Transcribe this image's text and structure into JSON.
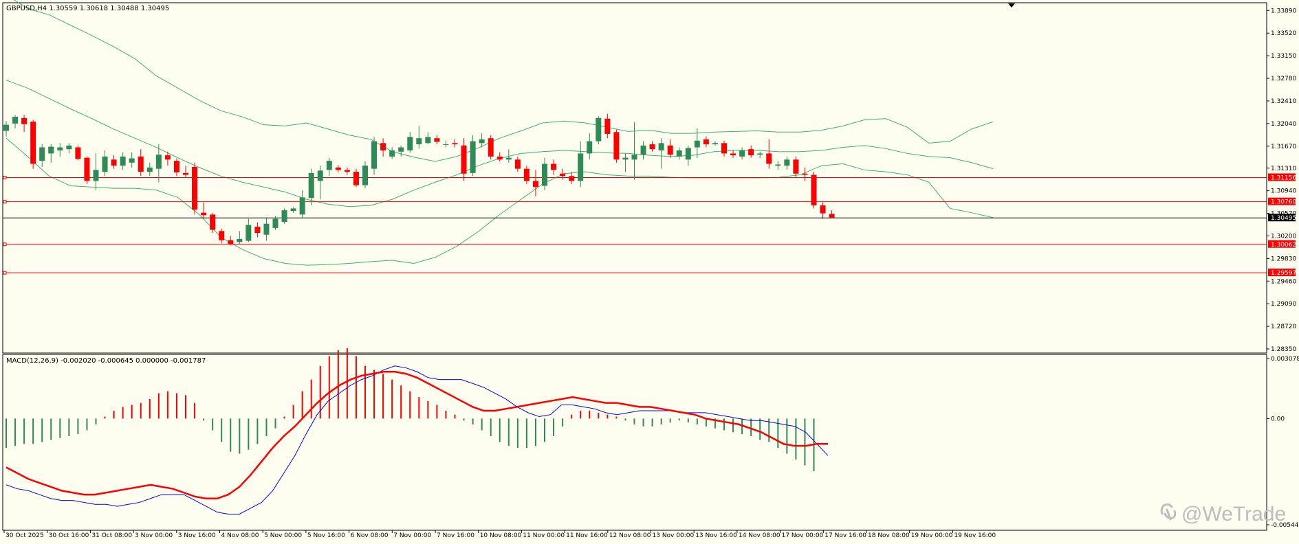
{
  "header": {
    "symbol_line": "GBPUSD,H4  1.30559 1.30618 1.30488 1.30495",
    "macd_line": "MACD(12,26,9) -0.002020 -0.000645 0.000000 -0.001787"
  },
  "watermark": {
    "text": "@WeTrade",
    "icon": "wetrade-logo-icon"
  },
  "colors": {
    "background": "#fdfdf0",
    "bull": "#2e8b57",
    "bear": "#ff0000",
    "band": "#3cb371",
    "level": "#ff0000",
    "current": "#000000",
    "macd_main": "#0000ff",
    "macd_signal": "#ff0000"
  },
  "chart_data": [
    {
      "type": "candlestick",
      "title": "GBPUSD,H4",
      "ohlc_readout": {
        "open": 1.30559,
        "high": 1.30618,
        "low": 1.30488,
        "close": 1.30495
      },
      "ylim": [
        1.2835,
        1.3395
      ],
      "y_ticks": [
        "1.33890",
        "1.33520",
        "1.33150",
        "1.32780",
        "1.32410",
        "1.32040",
        "1.31670",
        "1.31310",
        "1.30940",
        "1.30570",
        "1.30200",
        "1.29830",
        "1.29460",
        "1.29090",
        "1.28720",
        "1.28350"
      ],
      "x_ticks": [
        "30 Oct 2025",
        "30 Oct 16:00",
        "31 Oct 08:00",
        "3 Nov 00:00",
        "3 Nov 16:00",
        "4 Nov 08:00",
        "5 Nov 00:00",
        "5 Nov 16:00",
        "6 Nov 08:00",
        "7 Nov 00:00",
        "7 Nov 16:00",
        "10 Nov 08:00",
        "11 Nov 00:00",
        "11 Nov 16:00",
        "12 Nov 08:00",
        "13 Nov 00:00",
        "13 Nov 16:00",
        "14 Nov 08:00",
        "17 Nov 00:00",
        "17 Nov 16:00",
        "18 Nov 08:00",
        "19 Nov 00:00",
        "19 Nov 16:00"
      ],
      "candles": [
        [
          1.3192,
          1.3208,
          1.3183,
          1.3202
        ],
        [
          1.3204,
          1.3218,
          1.3196,
          1.3215
        ],
        [
          1.3213,
          1.3218,
          1.319,
          1.3203
        ],
        [
          1.3207,
          1.321,
          1.313,
          1.3138
        ],
        [
          1.3143,
          1.317,
          1.3133,
          1.3165
        ],
        [
          1.3155,
          1.317,
          1.314,
          1.3166
        ],
        [
          1.316,
          1.3172,
          1.315,
          1.3165
        ],
        [
          1.3162,
          1.3172,
          1.3155,
          1.3168
        ],
        [
          1.3165,
          1.3168,
          1.3144,
          1.3146
        ],
        [
          1.3148,
          1.315,
          1.3105,
          1.311
        ],
        [
          1.311,
          1.3155,
          1.3095,
          1.3128
        ],
        [
          1.3125,
          1.316,
          1.3118,
          1.315
        ],
        [
          1.3145,
          1.3152,
          1.313,
          1.3135
        ],
        [
          1.3135,
          1.3157,
          1.3128,
          1.315
        ],
        [
          1.314,
          1.3157,
          1.3132,
          1.3147
        ],
        [
          1.315,
          1.3162,
          1.3118,
          1.3125
        ],
        [
          1.3125,
          1.314,
          1.3118,
          1.3132
        ],
        [
          1.313,
          1.317,
          1.3108,
          1.3153
        ],
        [
          1.3152,
          1.3158,
          1.3135,
          1.3145
        ],
        [
          1.3143,
          1.3147,
          1.3118,
          1.3124
        ],
        [
          1.3123,
          1.3135,
          1.3115,
          1.312
        ],
        [
          1.3133,
          1.314,
          1.3055,
          1.3063
        ],
        [
          1.3058,
          1.3075,
          1.3048,
          1.3054
        ],
        [
          1.3055,
          1.3058,
          1.3025,
          1.303
        ],
        [
          1.3028,
          1.3032,
          1.3008,
          1.3013
        ],
        [
          1.3013,
          1.302,
          1.3005,
          1.3007
        ],
        [
          1.301,
          1.3028,
          1.3007,
          1.3015
        ],
        [
          1.3012,
          1.3048,
          1.301,
          1.3038
        ],
        [
          1.3035,
          1.3042,
          1.3018,
          1.3025
        ],
        [
          1.3022,
          1.305,
          1.3012,
          1.304
        ],
        [
          1.3033,
          1.3052,
          1.303,
          1.3048
        ],
        [
          1.3043,
          1.3065,
          1.304,
          1.3062
        ],
        [
          1.3061,
          1.3067,
          1.3058,
          1.3065
        ],
        [
          1.3055,
          1.3095,
          1.305,
          1.3083
        ],
        [
          1.3082,
          1.313,
          1.307,
          1.3123
        ],
        [
          1.311,
          1.3135,
          1.308,
          1.3127
        ],
        [
          1.3128,
          1.3148,
          1.3118,
          1.3143
        ],
        [
          1.3132,
          1.3136,
          1.3124,
          1.3128
        ],
        [
          1.3128,
          1.3132,
          1.312,
          1.3125
        ],
        [
          1.3125,
          1.313,
          1.31,
          1.3103
        ],
        [
          1.3103,
          1.3142,
          1.3098,
          1.3135
        ],
        [
          1.313,
          1.3182,
          1.312,
          1.3175
        ],
        [
          1.3172,
          1.318,
          1.315,
          1.316
        ],
        [
          1.315,
          1.3165,
          1.3146,
          1.316
        ],
        [
          1.3158,
          1.3168,
          1.315,
          1.3165
        ],
        [
          1.316,
          1.319,
          1.3156,
          1.3182
        ],
        [
          1.317,
          1.32,
          1.3163,
          1.318
        ],
        [
          1.3172,
          1.319,
          1.317,
          1.3182
        ],
        [
          1.318,
          1.3185,
          1.317,
          1.3174
        ],
        [
          1.317,
          1.3176,
          1.3165,
          1.317
        ],
        [
          1.3172,
          1.3178,
          1.3165,
          1.317
        ],
        [
          1.3168,
          1.318,
          1.311,
          1.3122
        ],
        [
          1.3123,
          1.3185,
          1.3118,
          1.3175
        ],
        [
          1.3172,
          1.3188,
          1.3165,
          1.3178
        ],
        [
          1.318,
          1.3185,
          1.3145,
          1.315
        ],
        [
          1.315,
          1.3157,
          1.3142,
          1.3145
        ],
        [
          1.3145,
          1.3162,
          1.314,
          1.3148
        ],
        [
          1.3145,
          1.315,
          1.3125,
          1.313
        ],
        [
          1.313,
          1.3135,
          1.3105,
          1.311
        ],
        [
          1.311,
          1.3128,
          1.3085,
          1.31
        ],
        [
          1.3102,
          1.3148,
          1.3095,
          1.3138
        ],
        [
          1.3138,
          1.3145,
          1.312,
          1.3128
        ],
        [
          1.3122,
          1.313,
          1.3112,
          1.3118
        ],
        [
          1.3118,
          1.3125,
          1.3105,
          1.311
        ],
        [
          1.311,
          1.3175,
          1.31,
          1.3155
        ],
        [
          1.3155,
          1.3188,
          1.3145,
          1.3175
        ],
        [
          1.3175,
          1.3216,
          1.317,
          1.3213
        ],
        [
          1.3212,
          1.322,
          1.318,
          1.3187
        ],
        [
          1.319,
          1.3194,
          1.314,
          1.3145
        ],
        [
          1.3145,
          1.3155,
          1.3125,
          1.3148
        ],
        [
          1.3145,
          1.3206,
          1.3112,
          1.3153
        ],
        [
          1.3153,
          1.3175,
          1.3145,
          1.3168
        ],
        [
          1.317,
          1.3175,
          1.3158,
          1.3162
        ],
        [
          1.316,
          1.318,
          1.313,
          1.3172
        ],
        [
          1.3168,
          1.3178,
          1.3148,
          1.3153
        ],
        [
          1.315,
          1.3165,
          1.3145,
          1.316
        ],
        [
          1.3145,
          1.3168,
          1.3135,
          1.3164
        ],
        [
          1.3165,
          1.3196,
          1.3148,
          1.3176
        ],
        [
          1.3178,
          1.3183,
          1.3165,
          1.317
        ],
        [
          1.317,
          1.3175,
          1.3168,
          1.3172
        ],
        [
          1.3172,
          1.3176,
          1.315,
          1.3155
        ],
        [
          1.3155,
          1.316,
          1.3148,
          1.3152
        ],
        [
          1.315,
          1.3165,
          1.3145,
          1.316
        ],
        [
          1.3162,
          1.3168,
          1.3148,
          1.3152
        ],
        [
          1.3153,
          1.3158,
          1.3147,
          1.3155
        ],
        [
          1.3155,
          1.3178,
          1.313,
          1.3138
        ],
        [
          1.3135,
          1.3143,
          1.3128,
          1.3137
        ],
        [
          1.3135,
          1.315,
          1.3128,
          1.3145
        ],
        [
          1.3145,
          1.315,
          1.3115,
          1.3122
        ],
        [
          1.3122,
          1.3132,
          1.311,
          1.312
        ],
        [
          1.312,
          1.3125,
          1.3065,
          1.307
        ],
        [
          1.307,
          1.3075,
          1.3048,
          1.3057
        ],
        [
          1.3056,
          1.3062,
          1.3049,
          1.305
        ]
      ],
      "bollinger": {
        "upper": [
          1.3415,
          1.3392,
          1.3382,
          1.3365,
          1.3348,
          1.333,
          1.331,
          1.3282,
          1.3262,
          1.3242,
          1.3225,
          1.3215,
          1.3202,
          1.32,
          1.3205,
          1.3195,
          1.3185,
          1.3178,
          1.3158,
          1.3149,
          1.3142,
          1.315,
          1.3164,
          1.318,
          1.3192,
          1.3205,
          1.3208,
          1.3205,
          1.3198,
          1.3191,
          1.3193,
          1.3188,
          1.3188,
          1.319,
          1.3191,
          1.3192,
          1.319,
          1.319,
          1.3193,
          1.32,
          1.321,
          1.3212,
          1.3198,
          1.3172,
          1.3175,
          1.3195,
          1.3207
        ],
        "middle": [
          1.3275,
          1.3262,
          1.3245,
          1.3228,
          1.3212,
          1.3195,
          1.318,
          1.3165,
          1.3148,
          1.3132,
          1.3118,
          1.3108,
          1.31,
          1.3092,
          1.308,
          1.3072,
          1.3068,
          1.307,
          1.308,
          1.3095,
          1.3108,
          1.312,
          1.3135,
          1.3147,
          1.3155,
          1.3158,
          1.316,
          1.3158,
          1.3156,
          1.3155,
          1.3152,
          1.315,
          1.3152,
          1.3158,
          1.316,
          1.316,
          1.3158,
          1.3158,
          1.316,
          1.3165,
          1.3168,
          1.3163,
          1.3155,
          1.315,
          1.3148,
          1.314,
          1.313
        ],
        "lower": [
          1.318,
          1.315,
          1.3118,
          1.3102,
          1.31,
          1.3098,
          1.3098,
          1.3095,
          1.3083,
          1.3055,
          1.3018,
          1.2998,
          1.2983,
          1.2975,
          1.2972,
          1.2973,
          1.2975,
          1.2978,
          1.298,
          1.2975,
          1.2985,
          1.3003,
          1.3027,
          1.3055,
          1.308,
          1.3105,
          1.3122,
          1.3125,
          1.312,
          1.3118,
          1.3118,
          1.3116,
          1.3115,
          1.3115,
          1.3115,
          1.3115,
          1.3116,
          1.312,
          1.3135,
          1.3138,
          1.3128,
          1.3125,
          1.312,
          1.3108,
          1.3065,
          1.3058,
          1.305
        ]
      },
      "levels": [
        {
          "value": 1.31156,
          "label": "1.31156",
          "color": "#ff0000"
        },
        {
          "value": 1.3076,
          "label": "1.30760",
          "color": "#ff0000"
        },
        {
          "value": 1.30062,
          "label": "1.30062",
          "color": "#ff0000"
        },
        {
          "value": 1.29597,
          "label": "1.29597",
          "color": "#ff0000"
        }
      ],
      "current_price": {
        "value": 1.30495,
        "label": "1.30495"
      }
    },
    {
      "type": "bar",
      "title": "MACD(12,26,9)",
      "readout": [
        -0.00202,
        -0.000645,
        0.0,
        -0.001787
      ],
      "ylim": [
        -0.005447,
        0.003078
      ],
      "y_ticks": [
        "0.003078",
        "0.00",
        "-0.005447"
      ],
      "histogram": [
        -0.0015,
        -0.0014,
        -0.0013,
        -0.0013,
        -0.0012,
        -0.0011,
        -0.001,
        -0.0009,
        -0.0008,
        -0.0006,
        -0.0003,
        0.0001,
        0.0004,
        0.0006,
        0.0007,
        0.0008,
        0.001,
        0.0013,
        0.0014,
        0.0013,
        0.0012,
        0.0008,
        -0.0001,
        -0.0006,
        -0.0012,
        -0.0017,
        -0.0018,
        -0.0016,
        -0.0013,
        -0.0009,
        -0.0005,
        0.0001,
        0.0007,
        0.0014,
        0.002,
        0.0027,
        0.0032,
        0.0035,
        0.0036,
        0.0032,
        0.0027,
        0.0025,
        0.0023,
        0.002,
        0.0017,
        0.0014,
        0.0011,
        0.0009,
        0.0007,
        0.0004,
        0.0002,
        -0.0001,
        -0.0003,
        -0.0006,
        -0.0009,
        -0.0012,
        -0.0014,
        -0.0015,
        -0.0015,
        -0.0014,
        -0.0012,
        -0.0009,
        -0.0004,
        0.0002,
        0.0004,
        0.0004,
        0.0003,
        0.0002,
        0.0001,
        -0.0001,
        -0.0003,
        -0.0004,
        -0.0004,
        -0.0003,
        -0.0002,
        -0.0001,
        -0.0002,
        -0.0003,
        -0.0004,
        -0.0005,
        -0.0006,
        -0.0007,
        -0.0008,
        -0.0009,
        -0.0011,
        -0.0012,
        -0.0015,
        -0.0018,
        -0.0021,
        -0.0024,
        -0.0027
      ],
      "macd_main": [
        -0.0034,
        -0.0036,
        -0.0037,
        -0.0039,
        -0.0041,
        -0.0042,
        -0.0042,
        -0.0043,
        -0.0044,
        -0.0044,
        -0.0045,
        -0.0044,
        -0.0043,
        -0.0041,
        -0.0039,
        -0.0039,
        -0.0039,
        -0.0042,
        -0.0045,
        -0.0048,
        -0.0049,
        -0.0049,
        -0.0046,
        -0.0043,
        -0.0037,
        -0.0028,
        -0.0019,
        -0.0008,
        0.0002,
        0.0009,
        0.0013,
        0.0017,
        0.002,
        0.0022,
        0.0025,
        0.0027,
        0.0026,
        0.0024,
        0.0021,
        0.002,
        0.002,
        0.002,
        0.0018,
        0.0016,
        0.0013,
        0.001,
        0.0006,
        0.0003,
        0.0001,
        0.0002,
        0.0007,
        0.0007,
        0.0006,
        0.0005,
        0.0003,
        0.0002,
        0.0003,
        0.0004,
        0.0004,
        0.0004,
        0.0004,
        0.0003,
        0.0003,
        0.0003,
        0.0002,
        0.0001,
        0.0,
        -0.0001,
        -0.0001,
        -0.0002,
        -0.0003,
        -0.0004,
        -0.0007,
        -0.0013,
        -0.0019
      ],
      "signal": [
        -0.0025,
        -0.0028,
        -0.0031,
        -0.0033,
        -0.0035,
        -0.0037,
        -0.0038,
        -0.0039,
        -0.0039,
        -0.0038,
        -0.0037,
        -0.0036,
        -0.0035,
        -0.0034,
        -0.0035,
        -0.0036,
        -0.0038,
        -0.004,
        -0.0041,
        -0.0041,
        -0.0039,
        -0.0035,
        -0.0029,
        -0.0022,
        -0.0015,
        -0.0009,
        -0.0004,
        0.0002,
        0.0008,
        0.0013,
        0.0017,
        0.002,
        0.0022,
        0.0023,
        0.0024,
        0.0024,
        0.0023,
        0.0021,
        0.0018,
        0.0015,
        0.0012,
        0.0009,
        0.0006,
        0.0004,
        0.0004,
        0.0005,
        0.0006,
        0.0007,
        0.0008,
        0.0009,
        0.001,
        0.0011,
        0.001,
        0.0009,
        0.0008,
        0.0008,
        0.0007,
        0.0006,
        0.0006,
        0.0005,
        0.0004,
        0.0003,
        0.0002,
        0.0,
        -0.0001,
        -0.0002,
        -0.0003,
        -0.0005,
        -0.0007,
        -0.001,
        -0.0013,
        -0.0014,
        -0.0014,
        -0.0013,
        -0.0013
      ]
    }
  ]
}
